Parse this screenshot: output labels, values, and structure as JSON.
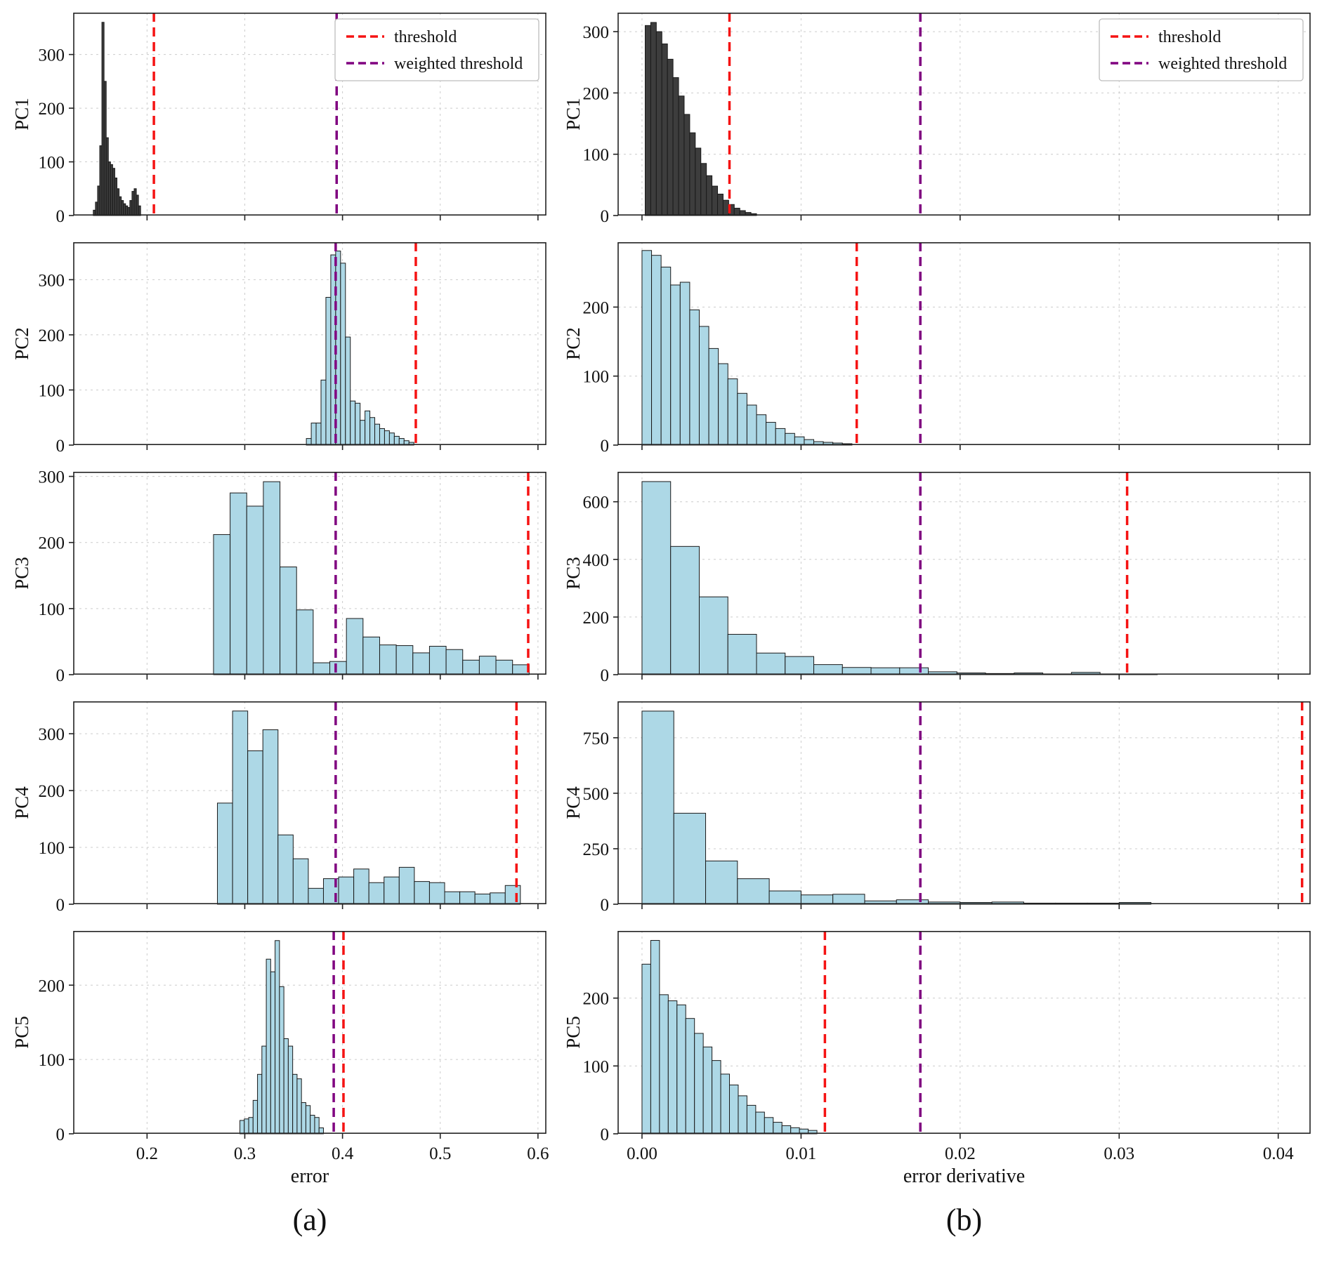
{
  "figure": {
    "xlabel_a": "error",
    "xlabel_b": "error derivative",
    "caption_a": "(a)",
    "caption_b": "(b)",
    "legend": {
      "threshold": "threshold",
      "weighted": "weighted threshold"
    },
    "colors": {
      "bar_fill": "#add8e6",
      "bar_fill_dark": "#3d3d3d",
      "bar_edge": "#1a1a1a",
      "threshold": "#f51313",
      "weighted_threshold": "#800080",
      "grid": "#cccccc",
      "axis": "#222222"
    }
  },
  "chart_data": [
    {
      "type": "bar",
      "id": "a-pc1",
      "label": "PC1",
      "column": "a",
      "fill": "dark",
      "legend": true,
      "show_xticklabels": false,
      "xlim": [
        0.125,
        0.608
      ],
      "xticks": [
        0.2,
        0.3,
        0.4,
        0.5,
        0.6
      ],
      "xtick_labels": [
        "0.2",
        "0.3",
        "0.4",
        "0.5",
        "0.6"
      ],
      "ylim": [
        0,
        378
      ],
      "yticks": [
        0,
        100,
        200,
        300
      ],
      "bins": {
        "start": 0.145,
        "width": 0.0022,
        "counts": [
          10,
          25,
          55,
          130,
          360,
          250,
          145,
          100,
          95,
          88,
          70,
          50,
          35,
          28,
          22,
          18,
          15,
          28,
          45,
          50,
          38,
          18
        ]
      },
      "thresholds": {
        "threshold": 0.207,
        "weighted_threshold": 0.394
      }
    },
    {
      "type": "bar",
      "id": "b-pc1",
      "label": "PC1",
      "column": "b",
      "fill": "dark",
      "legend": true,
      "show_xticklabels": false,
      "xlim": [
        -0.0015,
        0.042
      ],
      "xticks": [
        0.0,
        0.01,
        0.02,
        0.03,
        0.04
      ],
      "xtick_labels": [
        "0.00",
        "0.01",
        "0.02",
        "0.03",
        "0.04"
      ],
      "ylim": [
        0,
        331
      ],
      "yticks": [
        0,
        100,
        200,
        300
      ],
      "bins": {
        "start": 0.0002,
        "width": 0.00035,
        "counts": [
          310,
          315,
          300,
          280,
          255,
          225,
          195,
          165,
          135,
          110,
          85,
          65,
          48,
          35,
          25,
          18,
          12,
          8,
          5,
          3
        ]
      },
      "thresholds": {
        "threshold": 0.0055,
        "weighted_threshold": 0.0175
      }
    },
    {
      "type": "bar",
      "id": "a-pc2",
      "label": "PC2",
      "column": "a",
      "fill": "light",
      "legend": false,
      "show_xticklabels": false,
      "xlim": [
        0.125,
        0.608
      ],
      "xticks": [
        0.2,
        0.3,
        0.4,
        0.5,
        0.6
      ],
      "xtick_labels": [
        "0.2",
        "0.3",
        "0.4",
        "0.5",
        "0.6"
      ],
      "ylim": [
        0,
        368
      ],
      "yticks": [
        0,
        100,
        200,
        300
      ],
      "bins": {
        "start": 0.363,
        "width": 0.005,
        "counts": [
          12,
          40,
          40,
          118,
          268,
          345,
          352,
          330,
          196,
          80,
          76,
          45,
          62,
          50,
          38,
          30,
          26,
          22,
          16,
          12,
          8,
          5
        ]
      },
      "thresholds": {
        "threshold": 0.475,
        "weighted_threshold": 0.393
      }
    },
    {
      "type": "bar",
      "id": "b-pc2",
      "label": "PC2",
      "column": "b",
      "fill": "light",
      "legend": false,
      "show_xticklabels": false,
      "xlim": [
        -0.0015,
        0.042
      ],
      "xticks": [
        0.0,
        0.01,
        0.02,
        0.03,
        0.04
      ],
      "xtick_labels": [
        "0.00",
        "0.01",
        "0.02",
        "0.03",
        "0.04"
      ],
      "ylim": [
        0,
        294
      ],
      "yticks": [
        0,
        100,
        200
      ],
      "bins": {
        "start": 0.0,
        "width": 0.0006,
        "counts": [
          282,
          275,
          258,
          232,
          236,
          196,
          172,
          140,
          118,
          96,
          75,
          58,
          44,
          33,
          24,
          17,
          12,
          8,
          5,
          4,
          3,
          2
        ]
      },
      "thresholds": {
        "threshold": 0.0135,
        "weighted_threshold": 0.0175
      }
    },
    {
      "type": "bar",
      "id": "a-pc3",
      "label": "PC3",
      "column": "a",
      "fill": "light",
      "legend": false,
      "show_xticklabels": false,
      "xlim": [
        0.125,
        0.608
      ],
      "xticks": [
        0.2,
        0.3,
        0.4,
        0.5,
        0.6
      ],
      "xtick_labels": [
        "0.2",
        "0.3",
        "0.4",
        "0.5",
        "0.6"
      ],
      "ylim": [
        0,
        307
      ],
      "yticks": [
        0,
        100,
        200,
        300
      ],
      "bins": {
        "start": 0.268,
        "width": 0.017,
        "counts": [
          212,
          275,
          255,
          292,
          163,
          98,
          18,
          20,
          85,
          57,
          45,
          44,
          33,
          43,
          38,
          22,
          28,
          22,
          15
        ]
      },
      "thresholds": {
        "threshold": 0.59,
        "weighted_threshold": 0.393
      }
    },
    {
      "type": "bar",
      "id": "b-pc3",
      "label": "PC3",
      "column": "b",
      "fill": "light",
      "legend": false,
      "show_xticklabels": false,
      "xlim": [
        -0.0015,
        0.042
      ],
      "xticks": [
        0.0,
        0.01,
        0.02,
        0.03,
        0.04
      ],
      "xtick_labels": [
        "0.00",
        "0.01",
        "0.02",
        "0.03",
        "0.04"
      ],
      "ylim": [
        0,
        704
      ],
      "yticks": [
        0,
        200,
        400,
        600
      ],
      "bins": {
        "start": 0.0,
        "width": 0.0018,
        "counts": [
          670,
          445,
          270,
          140,
          75,
          63,
          35,
          25,
          24,
          24,
          10,
          6,
          4,
          6,
          2,
          8,
          2,
          2
        ]
      },
      "thresholds": {
        "threshold": 0.0305,
        "weighted_threshold": 0.0175
      }
    },
    {
      "type": "bar",
      "id": "a-pc4",
      "label": "PC4",
      "column": "a",
      "fill": "light",
      "legend": false,
      "show_xticklabels": false,
      "xlim": [
        0.125,
        0.608
      ],
      "xticks": [
        0.2,
        0.3,
        0.4,
        0.5,
        0.6
      ],
      "xtick_labels": [
        "0.2",
        "0.3",
        "0.4",
        "0.5",
        "0.6"
      ],
      "ylim": [
        0,
        357
      ],
      "yticks": [
        0,
        100,
        200,
        300
      ],
      "bins": {
        "start": 0.272,
        "width": 0.0155,
        "counts": [
          178,
          340,
          270,
          307,
          122,
          80,
          28,
          45,
          48,
          62,
          38,
          48,
          65,
          40,
          38,
          22,
          22,
          18,
          20,
          33
        ]
      },
      "thresholds": {
        "threshold": 0.578,
        "weighted_threshold": 0.393
      }
    },
    {
      "type": "bar",
      "id": "b-pc4",
      "label": "PC4",
      "column": "b",
      "fill": "light",
      "legend": false,
      "show_xticklabels": false,
      "xlim": [
        -0.0015,
        0.042
      ],
      "xticks": [
        0.0,
        0.01,
        0.02,
        0.03,
        0.04
      ],
      "xtick_labels": [
        "0.00",
        "0.01",
        "0.02",
        "0.03",
        "0.04"
      ],
      "ylim": [
        0,
        914
      ],
      "yticks": [
        0,
        250,
        500,
        750
      ],
      "bins": {
        "start": 0.0,
        "width": 0.002,
        "counts": [
          870,
          410,
          195,
          115,
          60,
          42,
          45,
          15,
          20,
          10,
          8,
          10,
          5,
          5,
          5,
          8
        ]
      },
      "thresholds": {
        "threshold": 0.0415,
        "weighted_threshold": 0.0175
      }
    },
    {
      "type": "bar",
      "id": "a-pc5",
      "label": "PC5",
      "column": "a",
      "fill": "light",
      "legend": false,
      "show_xticklabels": true,
      "xlim": [
        0.125,
        0.608
      ],
      "xticks": [
        0.2,
        0.3,
        0.4,
        0.5,
        0.6
      ],
      "xtick_labels": [
        "0.2",
        "0.3",
        "0.4",
        "0.5",
        "0.6"
      ],
      "ylim": [
        0,
        273
      ],
      "yticks": [
        0,
        100,
        200
      ],
      "bins": {
        "start": 0.295,
        "width": 0.0045,
        "counts": [
          18,
          20,
          22,
          45,
          80,
          118,
          235,
          218,
          260,
          198,
          128,
          118,
          80,
          74,
          42,
          38,
          25,
          22,
          8
        ]
      },
      "thresholds": {
        "threshold": 0.401,
        "weighted_threshold": 0.391
      }
    },
    {
      "type": "bar",
      "id": "b-pc5",
      "label": "PC5",
      "column": "b",
      "fill": "light",
      "legend": false,
      "show_xticklabels": true,
      "xlim": [
        -0.0015,
        0.042
      ],
      "xticks": [
        0.0,
        0.01,
        0.02,
        0.03,
        0.04
      ],
      "xtick_labels": [
        "0.00",
        "0.01",
        "0.02",
        "0.03",
        "0.04"
      ],
      "ylim": [
        0,
        299
      ],
      "yticks": [
        0,
        100,
        200
      ],
      "bins": {
        "start": 0.0,
        "width": 0.00055,
        "counts": [
          250,
          285,
          205,
          196,
          190,
          170,
          148,
          128,
          108,
          88,
          72,
          56,
          42,
          32,
          24,
          17,
          12,
          9,
          7,
          5
        ]
      },
      "thresholds": {
        "threshold": 0.0115,
        "weighted_threshold": 0.0175
      }
    }
  ]
}
